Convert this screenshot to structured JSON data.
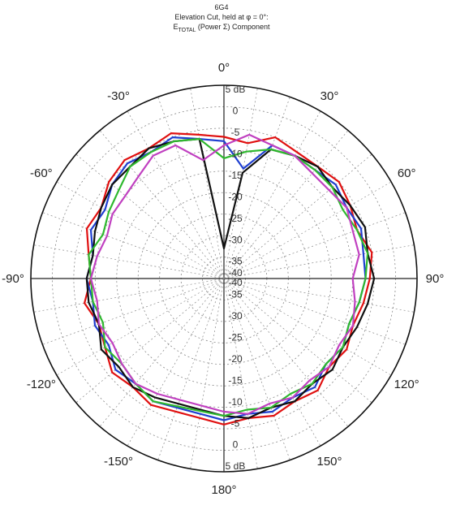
{
  "chart_data": {
    "type": "polar",
    "title": "6G4",
    "subtitle": "Elevation Cut, held at φ = 0°:",
    "component_prefix": "E",
    "component_sub": "TOTAL",
    "component_suffix": " (Power Σ) Component",
    "radial_unit": "dB",
    "radial_range": [
      -40,
      5
    ],
    "radial_ticks_upper": [
      "5 dB",
      "0",
      "-5",
      "-10",
      "-15",
      "-20",
      "-25",
      "-30",
      "-35",
      "-40"
    ],
    "radial_ticks_lower": [
      "5 dB",
      "0",
      "-5",
      "-10",
      "-15",
      "-20",
      "-25",
      "-30",
      "-35",
      "-40"
    ],
    "angle_labels": [
      {
        "angle": 0,
        "text": "0°"
      },
      {
        "angle": 30,
        "text": "30°"
      },
      {
        "angle": 60,
        "text": "60°"
      },
      {
        "angle": 90,
        "text": "90°"
      },
      {
        "angle": 120,
        "text": "120°"
      },
      {
        "angle": 150,
        "text": "150°"
      },
      {
        "angle": 180,
        "text": "180°"
      },
      {
        "angle": -150,
        "text": "-150°"
      },
      {
        "angle": -120,
        "text": "-120°"
      },
      {
        "angle": -90,
        "text": "-90°"
      },
      {
        "angle": -60,
        "text": "-60°"
      },
      {
        "angle": -30,
        "text": "-30°"
      }
    ],
    "grid": true,
    "series": [
      {
        "color": "#e01010",
        "angles": [
          -150,
          -140,
          -130,
          -120,
          -110,
          -100,
          -90,
          -80,
          -70,
          -60,
          -50,
          -40,
          -30,
          -20,
          -10,
          0,
          10,
          20,
          30,
          40,
          50,
          60,
          70,
          80,
          90,
          100,
          110,
          120,
          130,
          140,
          150,
          160,
          170,
          180
        ],
        "values": [
          -6,
          -7,
          -6,
          -8,
          -9,
          -7,
          -9,
          -8,
          -6,
          -7,
          -5,
          -4,
          -5,
          -4,
          -6,
          -7,
          -8,
          -5,
          -6,
          -6,
          -5,
          -6,
          -7,
          -5,
          -6,
          -7,
          -8,
          -7,
          -8,
          -6,
          -7,
          -6,
          -7,
          -6
        ]
      },
      {
        "color": "#1f3fd0",
        "angles": [
          -150,
          -140,
          -130,
          -120,
          -110,
          -100,
          -90,
          -80,
          -70,
          -60,
          -50,
          -40,
          -30,
          -20,
          -10,
          0,
          10,
          20,
          30,
          40,
          50,
          60,
          70,
          80,
          90,
          100,
          110,
          120,
          130,
          140,
          150,
          160,
          170,
          180
        ],
        "values": [
          -7,
          -8,
          -7,
          -9,
          -8,
          -9,
          -8,
          -9,
          -7,
          -8,
          -6,
          -5,
          -6,
          -5,
          -7,
          -8,
          -14,
          -7,
          -7,
          -7,
          -6,
          -7,
          -6,
          -7,
          -7,
          -8,
          -9,
          -8,
          -9,
          -7,
          -8,
          -7,
          -8,
          -7
        ]
      },
      {
        "color": "#101010",
        "angles": [
          -150,
          -140,
          -130,
          -120,
          -110,
          -100,
          -90,
          -80,
          -70,
          -60,
          -50,
          -40,
          -30,
          -20,
          -10,
          0,
          10,
          20,
          30,
          40,
          50,
          60,
          70,
          80,
          90,
          100,
          110,
          120,
          130,
          140,
          150,
          160,
          170,
          180
        ],
        "values": [
          -8,
          -7,
          -8,
          -7,
          -9,
          -8,
          -8,
          -9,
          -8,
          -7,
          -6,
          -6,
          -5,
          -6,
          -7,
          -33,
          -15,
          -8,
          -7,
          -6,
          -7,
          -6,
          -5,
          -6,
          -5,
          -6,
          -7,
          -8,
          -7,
          -8,
          -7,
          -8,
          -7,
          -8
        ]
      },
      {
        "color": "#2eb82e",
        "angles": [
          -150,
          -140,
          -130,
          -120,
          -110,
          -100,
          -90,
          -80,
          -70,
          -60,
          -50,
          -40,
          -30,
          -20,
          -10,
          0,
          10,
          20,
          30,
          40,
          50,
          60,
          70,
          80,
          90,
          100,
          110,
          120,
          130,
          140,
          150,
          160,
          170,
          180
        ],
        "values": [
          -7,
          -8,
          -9,
          -8,
          -10,
          -9,
          -9,
          -8,
          -10,
          -9,
          -8,
          -6,
          -6,
          -6,
          -7,
          -12,
          -10,
          -8,
          -7,
          -7,
          -7,
          -8,
          -7,
          -6,
          -7,
          -8,
          -9,
          -8,
          -9,
          -8,
          -9,
          -8,
          -9,
          -8
        ]
      },
      {
        "color": "#c040c0",
        "angles": [
          -150,
          -140,
          -130,
          -120,
          -110,
          -100,
          -90,
          -80,
          -70,
          -60,
          -50,
          -40,
          -30,
          -20,
          -10,
          0,
          10,
          20,
          30,
          40,
          50,
          60,
          70,
          80,
          90,
          100,
          110,
          120,
          130,
          140,
          150,
          160,
          170,
          180
        ],
        "values": [
          -9,
          -8,
          -9,
          -10,
          -9,
          -10,
          -9,
          -10,
          -11,
          -10,
          -10,
          -9,
          -7,
          -7,
          -12,
          -9,
          -6,
          -7,
          -7,
          -8,
          -8,
          -7,
          -8,
          -8,
          -10,
          -9,
          -8,
          -9,
          -8,
          -9,
          -8,
          -9,
          -8,
          -9
        ]
      }
    ]
  }
}
